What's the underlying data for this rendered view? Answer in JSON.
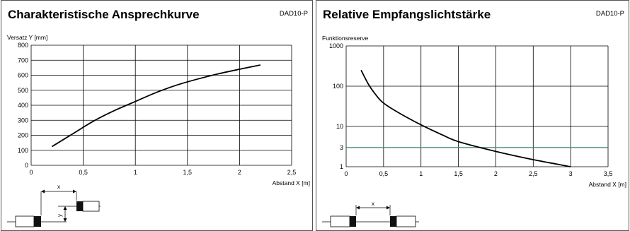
{
  "charts": [
    {
      "id": "c1",
      "header": "Charakteristische Ansprechkurve",
      "code": "DAD10-P",
      "sketch": "offset",
      "sketch_labels": {
        "x": "x",
        "y": "y"
      }
    },
    {
      "id": "c2",
      "header": "Relative Empfangslichtstärke",
      "code": "DAD10-P",
      "sketch": "axial",
      "sketch_labels": {
        "x": "x"
      }
    }
  ],
  "chart_data": [
    {
      "type": "line",
      "title": "Charakteristische Ansprechkurve",
      "xlabel": "Abstand X [m]",
      "ylabel": "Versatz Y [mm]",
      "xlim": [
        0,
        2.5
      ],
      "ylim": [
        0,
        800
      ],
      "xticks": [
        0,
        0.5,
        1,
        1.5,
        2,
        2.5
      ],
      "xtick_labels": [
        "0",
        "0,5",
        "1",
        "1,5",
        "2",
        "2,5"
      ],
      "yticks": [
        0,
        100,
        200,
        300,
        400,
        500,
        600,
        700,
        800
      ],
      "ytick_labels": [
        "0",
        "100",
        "200",
        "300",
        "400",
        "500",
        "600",
        "700",
        "800"
      ],
      "grid": true,
      "series": [
        {
          "x": [
            0.2,
            0.4,
            0.6,
            0.8,
            1.0,
            1.2,
            1.4,
            1.6,
            1.8,
            2.0,
            2.2
          ],
          "y": [
            125,
            210,
            295,
            365,
            425,
            485,
            535,
            575,
            610,
            640,
            668
          ]
        }
      ]
    },
    {
      "type": "line",
      "title": "Relative Empfangslichtstärke",
      "xlabel": "Abstand X [m]",
      "ylabel": "Funktionsreserve",
      "xlim": [
        0,
        3.5
      ],
      "ylim": [
        1,
        1000
      ],
      "yscale": "log",
      "xticks": [
        0,
        0.5,
        1,
        1.5,
        2,
        2.5,
        3,
        3.5
      ],
      "xtick_labels": [
        "0",
        "0,5",
        "1",
        "1,5",
        "2",
        "2,5",
        "3",
        "3,5"
      ],
      "yticks": [
        1,
        3,
        10,
        100,
        1000
      ],
      "ytick_labels": [
        "1",
        "3",
        "10",
        "100",
        "1000"
      ],
      "grid": true,
      "reference_line": {
        "y": 3,
        "color": "#3a9a8a"
      },
      "series": [
        {
          "x": [
            0.2,
            0.3,
            0.4,
            0.5,
            0.7,
            1.0,
            1.3,
            1.5,
            2.0,
            2.5,
            3.0
          ],
          "y": [
            250,
            110,
            60,
            38,
            22,
            11,
            6,
            4.2,
            2.4,
            1.5,
            1.0
          ]
        }
      ]
    }
  ]
}
